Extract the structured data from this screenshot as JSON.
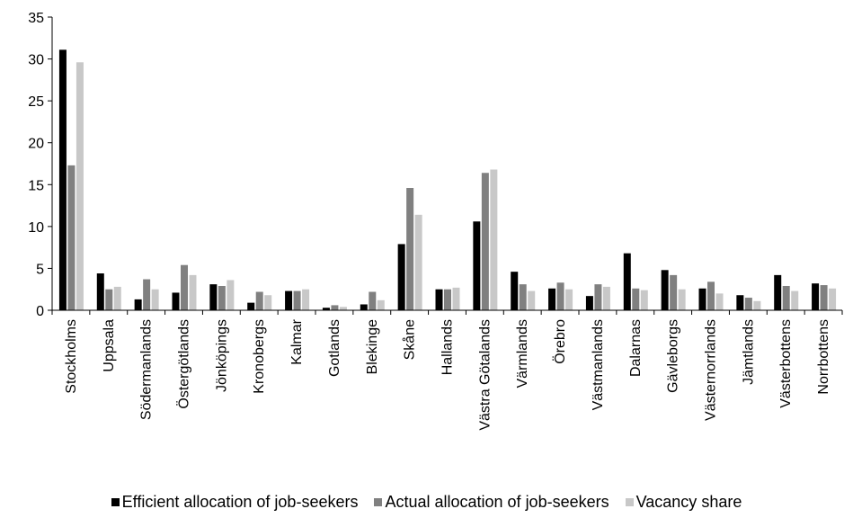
{
  "chart_data": {
    "type": "bar",
    "title": "",
    "xlabel": "",
    "ylabel": "",
    "ylim": [
      0,
      35
    ],
    "yticks": [
      0,
      5,
      10,
      15,
      20,
      25,
      30,
      35
    ],
    "grid": false,
    "legend_position": "bottom",
    "categories": [
      "Stockholms",
      "Uppsala",
      "Södermanlands",
      "Östergötlands",
      "Jönköpings",
      "Kronobergs",
      "Kalmar",
      "Gotlands",
      "Blekinge",
      "Skåne",
      "Hallands",
      "Västra Götalands",
      "Värmlands",
      "Örebro",
      "Västmanlands",
      "Dalarnas",
      "Gävleborgs",
      "Västernorrlands",
      "Jämtlands",
      "Västerbottens",
      "Norrbottens"
    ],
    "series": [
      {
        "name": "Efficient allocation of job-seekers",
        "color": "#000000",
        "values": [
          31.1,
          4.4,
          1.3,
          2.1,
          3.1,
          0.9,
          2.3,
          0.3,
          0.7,
          7.9,
          2.5,
          10.6,
          4.6,
          2.6,
          1.7,
          6.8,
          4.8,
          2.6,
          1.8,
          4.2,
          3.2
        ]
      },
      {
        "name": "Actual allocation of job-seekers",
        "color": "#808080",
        "values": [
          17.3,
          2.5,
          3.7,
          5.4,
          2.9,
          2.2,
          2.3,
          0.6,
          2.2,
          14.6,
          2.5,
          16.4,
          3.1,
          3.3,
          3.1,
          2.6,
          4.2,
          3.4,
          1.5,
          2.9,
          3.0
        ]
      },
      {
        "name": "Vacancy share",
        "color": "#c8c8c8",
        "values": [
          29.6,
          2.8,
          2.5,
          4.2,
          3.6,
          1.8,
          2.5,
          0.4,
          1.2,
          11.4,
          2.7,
          16.8,
          2.3,
          2.5,
          2.8,
          2.4,
          2.5,
          2.0,
          1.1,
          2.3,
          2.6
        ]
      }
    ]
  }
}
